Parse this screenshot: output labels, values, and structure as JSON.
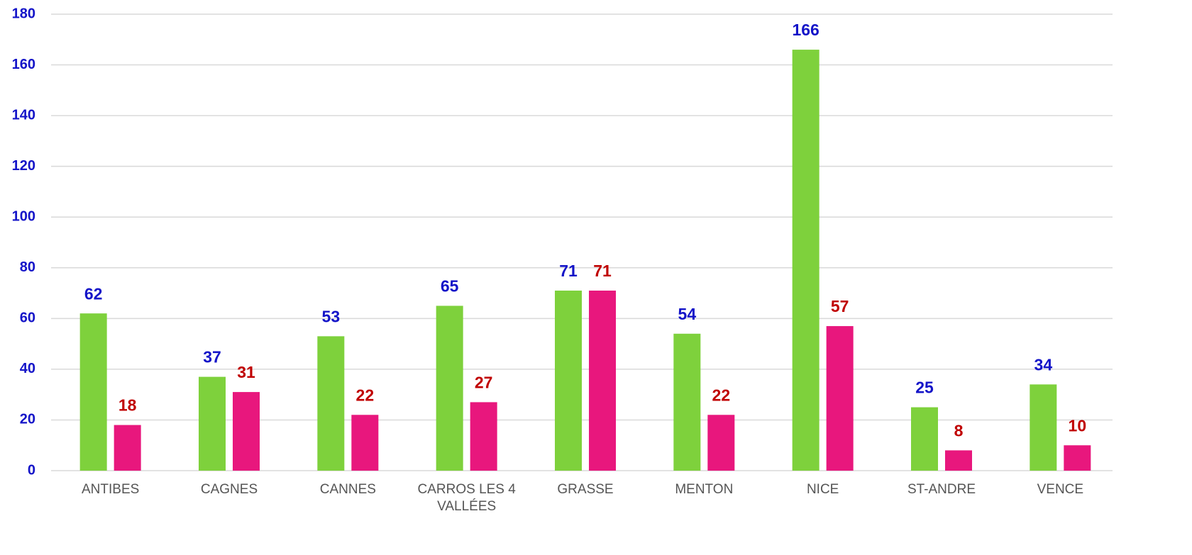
{
  "chart_data": {
    "type": "bar",
    "categories": [
      "ANTIBES",
      "CAGNES",
      "CANNES",
      "CARROS LES 4 VALLÉES",
      "GRASSE",
      "MENTON",
      "NICE",
      "ST-ANDRE",
      "VENCE"
    ],
    "series": [
      {
        "color": "#7ed13c",
        "label_color": "#1414c8",
        "values": [
          62,
          37,
          53,
          65,
          71,
          54,
          166,
          25,
          34
        ]
      },
      {
        "color": "#e8177d",
        "label_color": "#c00000",
        "values": [
          18,
          31,
          22,
          27,
          71,
          22,
          57,
          8,
          10
        ]
      }
    ],
    "ylim": [
      0,
      180
    ],
    "yticks": [
      0,
      20,
      40,
      60,
      80,
      100,
      120,
      140,
      160,
      180
    ],
    "grid": true,
    "tick_label_color": "#1414c8"
  }
}
